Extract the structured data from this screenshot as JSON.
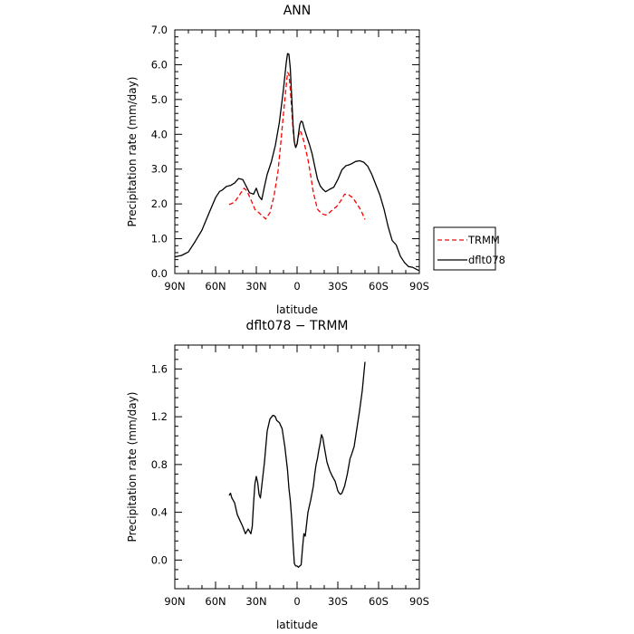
{
  "chart_data": [
    {
      "type": "line",
      "title": "ANN",
      "xlabel": "latitude",
      "ylabel": "Precipitation rate (mm/day)",
      "xlim": [
        90,
        -90
      ],
      "ylim": [
        0,
        7
      ],
      "x_ticks": [
        90,
        60,
        30,
        0,
        -30,
        -60,
        -90
      ],
      "x_tick_labels": [
        "90N",
        "60N",
        "30N",
        "0",
        "30S",
        "60S",
        "90S"
      ],
      "y_ticks": [
        0,
        1,
        2,
        3,
        4,
        5,
        6,
        7
      ],
      "y_tick_labels": [
        "0.0",
        "1.0",
        "2.0",
        "3.0",
        "4.0",
        "5.0",
        "6.0",
        "7.0"
      ],
      "legend_position": "right",
      "series": [
        {
          "name": "TRMM",
          "color": "#ff0000",
          "dash": true,
          "x": [
            50,
            46,
            42,
            39,
            37,
            34,
            31,
            29,
            26,
            23,
            20,
            17,
            14,
            12,
            10,
            8,
            7,
            6,
            5,
            4,
            3,
            2,
            1,
            0,
            -1,
            -2,
            -3,
            -4,
            -5,
            -6,
            -8,
            -10,
            -12,
            -15,
            -18,
            -21,
            -23,
            -26,
            -29,
            -32,
            -35,
            -38,
            -41,
            -44,
            -47,
            -50
          ],
          "y": [
            1.98,
            2.05,
            2.28,
            2.45,
            2.38,
            2.12,
            1.84,
            1.78,
            1.67,
            1.57,
            1.75,
            2.22,
            2.95,
            3.75,
            4.6,
            5.4,
            5.78,
            5.72,
            5.3,
            4.75,
            4.15,
            3.75,
            3.62,
            3.72,
            3.95,
            4.1,
            4.05,
            3.92,
            3.8,
            3.62,
            3.28,
            2.82,
            2.32,
            1.85,
            1.72,
            1.68,
            1.72,
            1.83,
            1.92,
            2.08,
            2.28,
            2.26,
            2.18,
            2.0,
            1.82,
            1.55
          ]
        },
        {
          "name": "dflt078",
          "color": "#000000",
          "dash": false,
          "x": [
            90,
            85,
            80,
            75,
            70,
            65,
            60,
            57,
            55,
            52,
            49,
            46,
            43,
            40,
            38,
            35,
            32,
            30,
            28,
            26,
            24,
            22,
            19,
            16,
            13,
            10,
            8,
            7,
            6,
            5,
            4,
            3,
            2,
            1,
            0,
            -1,
            -2,
            -3,
            -4,
            -5,
            -7,
            -9,
            -11,
            -13,
            -15,
            -17,
            -19,
            -21,
            -24,
            -27,
            -30,
            -33,
            -36,
            -38,
            -40,
            -43,
            -46,
            -49,
            -52,
            -55,
            -58,
            -61,
            -64,
            -67,
            -70,
            -73,
            -76,
            -79,
            -82,
            -85,
            -88,
            -90
          ],
          "y": [
            0.48,
            0.52,
            0.62,
            0.92,
            1.25,
            1.72,
            2.18,
            2.36,
            2.4,
            2.5,
            2.53,
            2.6,
            2.73,
            2.7,
            2.55,
            2.32,
            2.28,
            2.45,
            2.22,
            2.12,
            2.5,
            2.85,
            3.2,
            3.68,
            4.35,
            5.3,
            6.05,
            6.32,
            6.3,
            5.9,
            5.1,
            4.3,
            3.78,
            3.62,
            3.72,
            4.0,
            4.28,
            4.38,
            4.35,
            4.2,
            3.95,
            3.72,
            3.45,
            3.08,
            2.72,
            2.52,
            2.42,
            2.35,
            2.42,
            2.48,
            2.7,
            2.98,
            3.1,
            3.12,
            3.15,
            3.22,
            3.24,
            3.2,
            3.08,
            2.85,
            2.55,
            2.25,
            1.85,
            1.35,
            0.95,
            0.82,
            0.5,
            0.32,
            0.2,
            0.18,
            0.12,
            0.08
          ]
        }
      ]
    },
    {
      "type": "line",
      "title": "dflt078 − TRMM",
      "xlabel": "latitude",
      "ylabel": "Precipitation rate (mm/day)",
      "xlim": [
        90,
        -90
      ],
      "ylim": [
        -0.24,
        1.8
      ],
      "x_ticks": [
        90,
        60,
        30,
        0,
        -30,
        -60,
        -90
      ],
      "x_tick_labels": [
        "90N",
        "60N",
        "30N",
        "0",
        "30S",
        "60S",
        "90S"
      ],
      "y_ticks": [
        0,
        0.4,
        0.8,
        1.2,
        1.6
      ],
      "y_tick_labels": [
        "0.0",
        "0.4",
        "0.8",
        "1.2",
        "1.6"
      ],
      "series": [
        {
          "color": "#000000",
          "x": [
            50,
            49,
            48,
            46,
            44,
            42,
            40,
            38,
            37,
            36,
            34,
            33,
            32,
            31,
            30,
            29,
            28,
            27,
            26,
            24,
            22,
            20,
            18,
            17,
            16,
            15,
            13,
            11,
            9,
            7,
            6,
            5,
            4,
            3,
            2,
            1,
            0,
            -1,
            -2,
            -3,
            -4,
            -5,
            -6,
            -7,
            -8,
            -10,
            -12,
            -13,
            -14,
            -15,
            -16,
            -17,
            -18,
            -19,
            -20,
            -22,
            -24,
            -26,
            -27,
            -28,
            -29,
            -30,
            -31,
            -32,
            -33,
            -35,
            -37,
            -39,
            -40,
            -42,
            -44,
            -46,
            -48,
            -50
          ],
          "y": [
            0.54,
            0.56,
            0.52,
            0.48,
            0.38,
            0.33,
            0.28,
            0.22,
            0.24,
            0.26,
            0.22,
            0.28,
            0.48,
            0.64,
            0.7,
            0.65,
            0.55,
            0.52,
            0.62,
            0.82,
            1.08,
            1.18,
            1.21,
            1.21,
            1.2,
            1.17,
            1.15,
            1.1,
            0.95,
            0.75,
            0.6,
            0.5,
            0.35,
            0.15,
            -0.03,
            -0.05,
            -0.05,
            -0.06,
            -0.05,
            -0.04,
            0.1,
            0.22,
            0.2,
            0.3,
            0.4,
            0.5,
            0.62,
            0.72,
            0.8,
            0.85,
            0.92,
            0.98,
            1.05,
            1.02,
            0.95,
            0.82,
            0.75,
            0.7,
            0.68,
            0.66,
            0.62,
            0.58,
            0.56,
            0.55,
            0.56,
            0.62,
            0.72,
            0.85,
            0.88,
            0.95,
            1.1,
            1.25,
            1.42,
            1.66
          ]
        }
      ]
    }
  ]
}
